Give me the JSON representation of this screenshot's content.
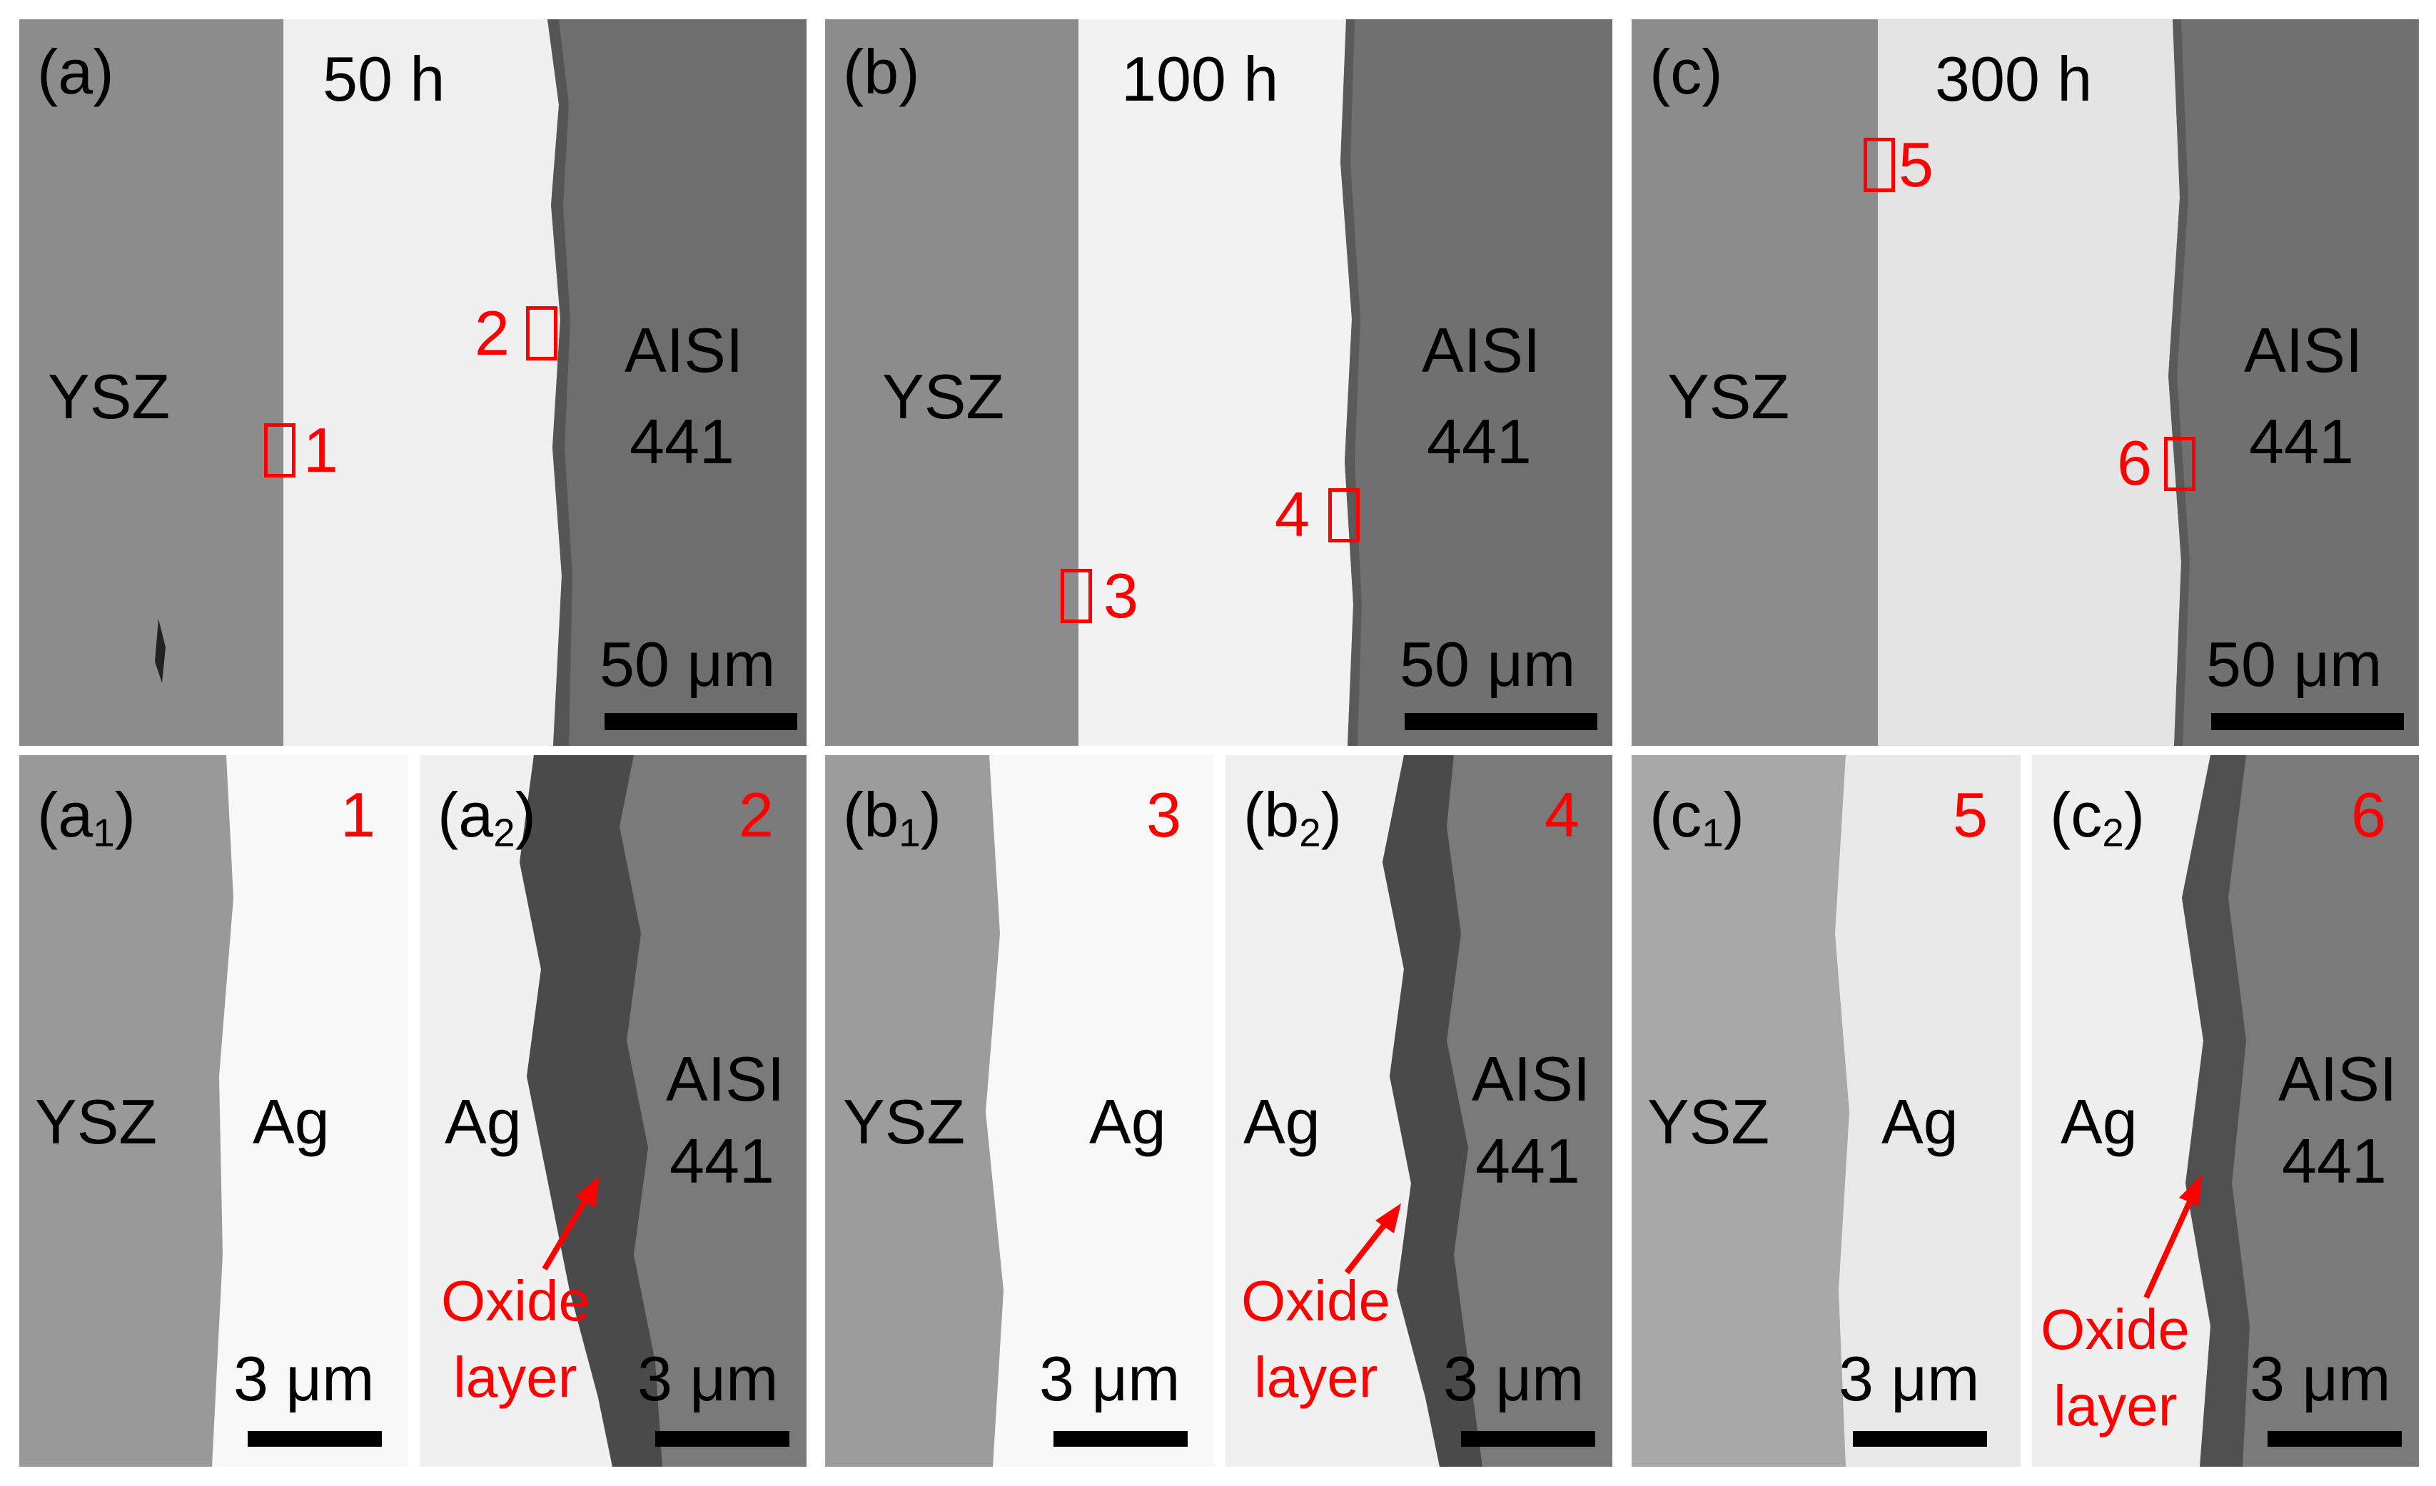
{
  "top_panels": [
    {
      "tag": "(a)",
      "time": "50 h",
      "left_material": "YSZ",
      "right_material_1": "AISI",
      "right_material_2": "441",
      "scale": "50 μm",
      "markers": [
        "1",
        "2"
      ]
    },
    {
      "tag": "(b)",
      "time": "100 h",
      "left_material": "YSZ",
      "right_material_1": "AISI",
      "right_material_2": "441",
      "scale": "50 μm",
      "markers": [
        "3",
        "4"
      ]
    },
    {
      "tag": "(c)",
      "time": "300 h",
      "left_material": "YSZ",
      "right_material_1": "AISI",
      "right_material_2": "441",
      "scale": "50 μm",
      "markers": [
        "5",
        "6"
      ]
    }
  ],
  "bottom_panels": [
    {
      "tag_main": "(a",
      "tag_sub": "1",
      "tag_close": ")",
      "number": "1",
      "left": "YSZ",
      "right": "Ag",
      "scale": "3 μm"
    },
    {
      "tag_main": "(a",
      "tag_sub": "2",
      "tag_close": ")",
      "number": "2",
      "left": "Ag",
      "right_1": "AISI",
      "right_2": "441",
      "oxide_1": "Oxide",
      "oxide_2": "layer",
      "scale": "3 μm"
    },
    {
      "tag_main": "(b",
      "tag_sub": "1",
      "tag_close": ")",
      "number": "3",
      "left": "YSZ",
      "right": "Ag",
      "scale": "3 μm"
    },
    {
      "tag_main": "(b",
      "tag_sub": "2",
      "tag_close": ")",
      "number": "4",
      "left": "Ag",
      "right_1": "AISI",
      "right_2": "441",
      "oxide_1": "Oxide",
      "oxide_2": "layer",
      "scale": "3 μm"
    },
    {
      "tag_main": "(c",
      "tag_sub": "1",
      "tag_close": ")",
      "number": "5",
      "left": "YSZ",
      "right": "Ag",
      "scale": "3 μm"
    },
    {
      "tag_main": "(c",
      "tag_sub": "2",
      "tag_close": ")",
      "number": "6",
      "left": "Ag",
      "right_1": "AISI",
      "right_2": "441",
      "oxide_1": "Oxide",
      "oxide_2": "layer",
      "scale": "3 μm"
    }
  ],
  "colors": {
    "ysz": "#8c8c8c",
    "silver": "#f0f0f0",
    "steel": "#6e6e6e",
    "oxide": "#4a4a4a",
    "annotation": "#ff0000"
  }
}
